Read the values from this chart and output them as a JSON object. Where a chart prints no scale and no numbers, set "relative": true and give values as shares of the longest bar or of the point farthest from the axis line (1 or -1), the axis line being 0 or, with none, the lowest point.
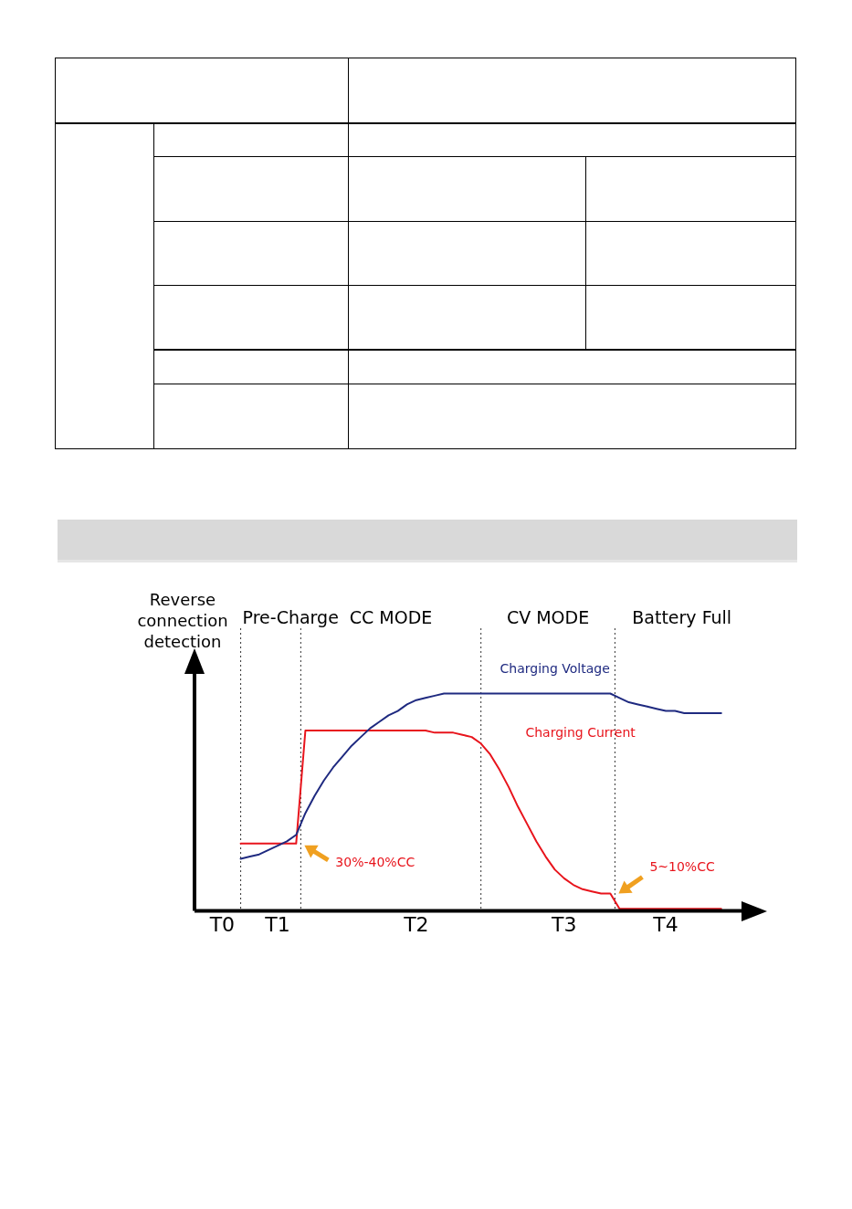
{
  "chart_data": {
    "type": "line",
    "relative": true,
    "marker": "none",
    "line_style": "solid",
    "legend": false,
    "grid": false,
    "categories": [
      null,
      null,
      null,
      "T0",
      null,
      null,
      null,
      null,
      null,
      "T1",
      null,
      null,
      null,
      null,
      null,
      null,
      null,
      null,
      null,
      null,
      null,
      null,
      null,
      null,
      "T2",
      null,
      null,
      null,
      null,
      null,
      null,
      null,
      null,
      null,
      null,
      null,
      null,
      null,
      null,
      null,
      "T3",
      null,
      null,
      null,
      null,
      null,
      null,
      null,
      null,
      null,
      null,
      "T4",
      null,
      null,
      null,
      null,
      null,
      null,
      null,
      null
    ],
    "series": [
      {
        "name": "Charging Voltage",
        "color": "#1f2a80",
        "values": [
          null,
          null,
          null,
          null,
          null,
          0.24,
          0.25,
          0.26,
          0.28,
          0.3,
          0.32,
          0.35,
          0.45,
          0.53,
          0.6,
          0.66,
          0.71,
          0.76,
          0.8,
          0.84,
          0.87,
          0.9,
          0.92,
          0.95,
          0.97,
          0.98,
          0.99,
          1.0,
          1.0,
          1.0,
          1.0,
          1.0,
          1.0,
          1.0,
          1.0,
          1.0,
          1.0,
          1.0,
          1.0,
          1.0,
          1.0,
          1.0,
          1.0,
          1.0,
          1.0,
          1.0,
          0.98,
          0.96,
          0.95,
          0.94,
          0.93,
          0.92,
          0.92,
          0.91,
          0.91,
          0.91,
          0.91,
          0.91,
          null,
          null
        ]
      },
      {
        "name": "Charging Current",
        "color": "#e8141c",
        "values": [
          null,
          null,
          null,
          null,
          null,
          0.31,
          0.31,
          0.31,
          0.31,
          0.31,
          0.31,
          0.31,
          0.83,
          0.83,
          0.83,
          0.83,
          0.83,
          0.83,
          0.83,
          0.83,
          0.83,
          0.83,
          0.83,
          0.83,
          0.83,
          0.83,
          0.82,
          0.82,
          0.82,
          0.81,
          0.8,
          0.77,
          0.72,
          0.65,
          0.57,
          0.48,
          0.4,
          0.32,
          0.25,
          0.19,
          0.15,
          0.12,
          0.1,
          0.09,
          0.08,
          0.08,
          0.01,
          0.01,
          0.01,
          0.01,
          0.01,
          0.01,
          0.01,
          0.01,
          0.01,
          0.01,
          0.01,
          0.01,
          null,
          null
        ]
      }
    ],
    "annotations": [
      "Reverse connection detection",
      "Pre-Charge",
      "CC MODE",
      "CV MODE",
      "Battery Full",
      "30%-40%CC",
      "5~10%CC"
    ]
  }
}
